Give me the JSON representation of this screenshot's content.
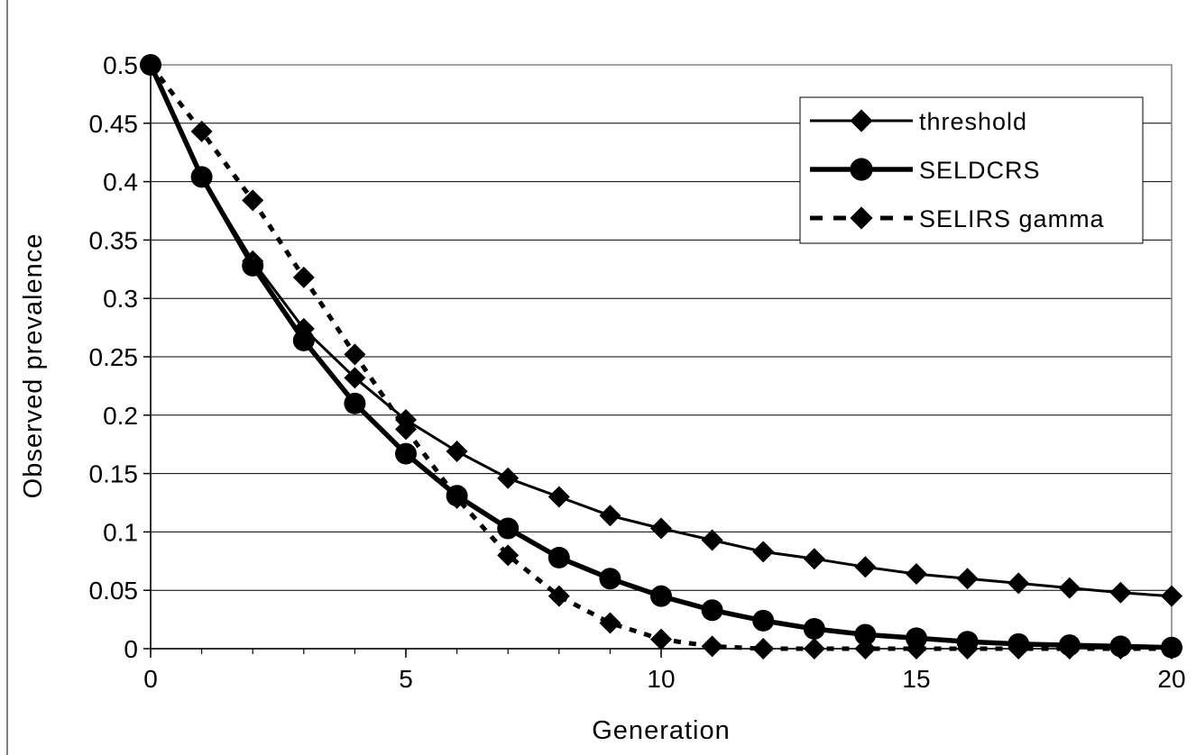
{
  "chart_data": {
    "type": "line",
    "xlabel": "Generation",
    "ylabel": "Observed prevalence",
    "xlim": [
      0,
      20
    ],
    "ylim": [
      0,
      0.5
    ],
    "xticks": [
      "0",
      "5",
      "10",
      "15",
      "20"
    ],
    "yticks": [
      "0",
      "0.05",
      "0.1",
      "0.15",
      "0.2",
      "0.25",
      "0.3",
      "0.35",
      "0.4",
      "0.45",
      "0.5"
    ],
    "grid": "horizontal",
    "legend_position": "top-right",
    "x": [
      0,
      1,
      2,
      3,
      4,
      5,
      6,
      7,
      8,
      9,
      10,
      11,
      12,
      13,
      14,
      15,
      16,
      17,
      18,
      19,
      20
    ],
    "series": [
      {
        "name": "threshold",
        "marker": "diamond",
        "line": "solid-thin",
        "values": [
          0.5,
          0.404,
          0.332,
          0.274,
          0.232,
          0.196,
          0.169,
          0.146,
          0.13,
          0.114,
          0.103,
          0.093,
          0.083,
          0.077,
          0.07,
          0.064,
          0.06,
          0.056,
          0.052,
          0.048,
          0.045
        ]
      },
      {
        "name": "SELDCRS",
        "marker": "circle",
        "line": "solid-thick",
        "values": [
          0.5,
          0.404,
          0.328,
          0.264,
          0.21,
          0.167,
          0.131,
          0.103,
          0.078,
          0.06,
          0.045,
          0.033,
          0.024,
          0.017,
          0.012,
          0.009,
          0.006,
          0.004,
          0.003,
          0.002,
          0.001
        ]
      },
      {
        "name": "SELIRS gamma",
        "marker": "diamond",
        "line": "dotted",
        "values": [
          0.5,
          0.443,
          0.384,
          0.318,
          0.252,
          0.188,
          0.129,
          0.08,
          0.045,
          0.022,
          0.008,
          0.002,
          0.0,
          0.0,
          0.0,
          0.0,
          0.0,
          0.0,
          0.0,
          0.0,
          0.0
        ]
      }
    ]
  }
}
